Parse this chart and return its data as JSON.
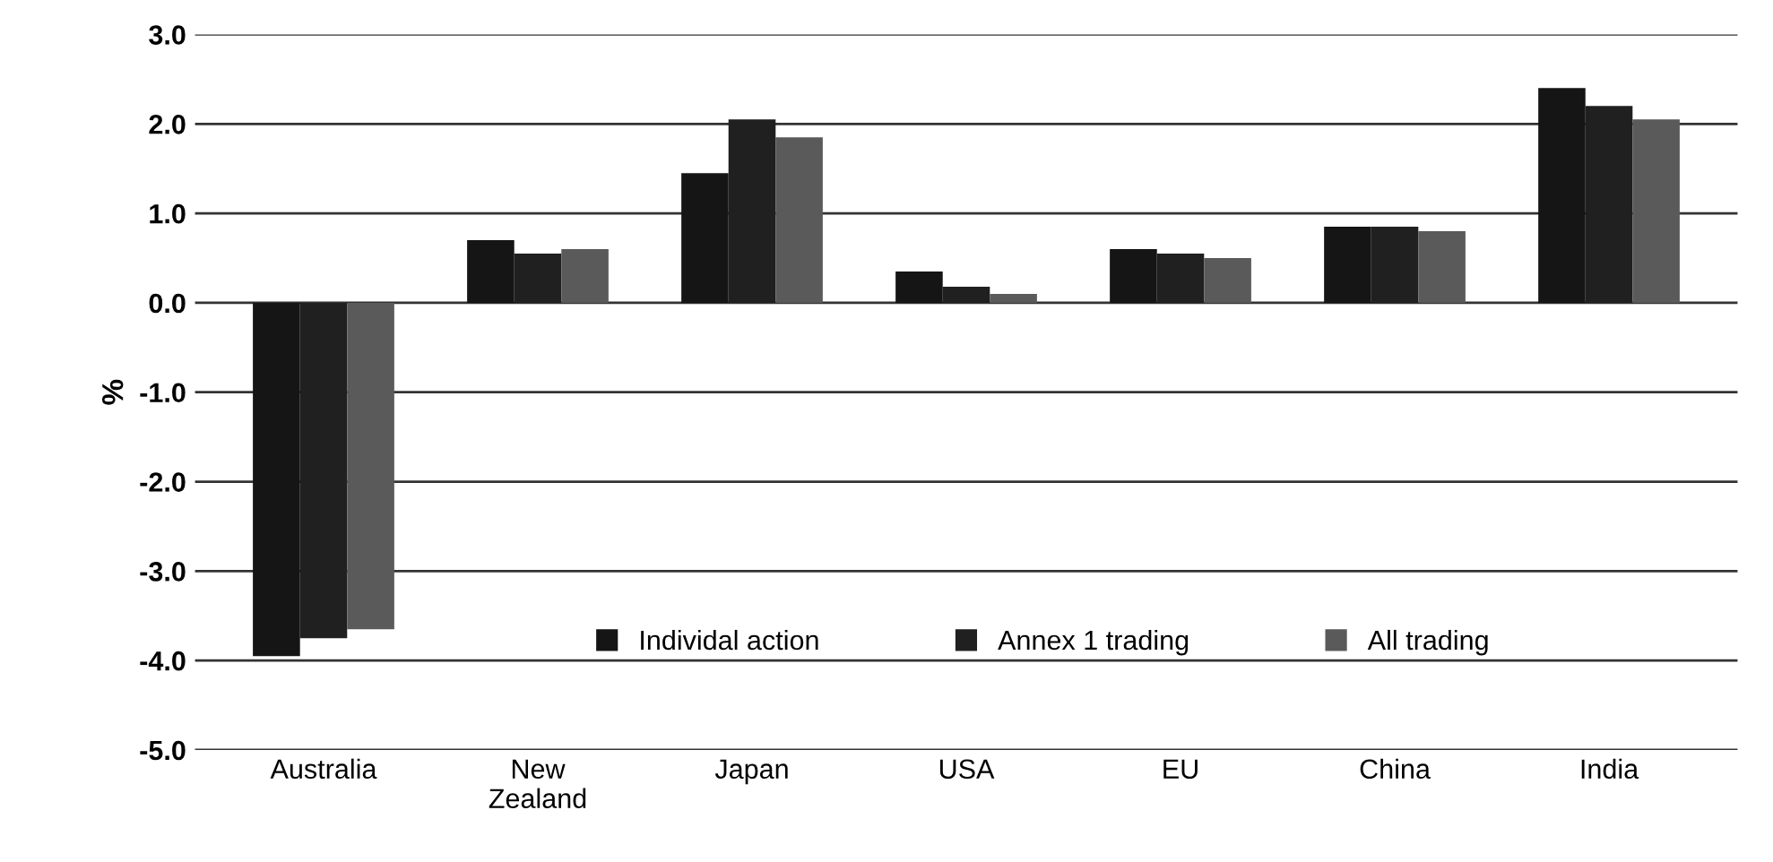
{
  "chart_data": {
    "type": "bar",
    "ylabel": "%",
    "categories": [
      "Australia",
      "New\nZealand",
      "Japan",
      "USA",
      "EU",
      "China",
      "India"
    ],
    "series": [
      {
        "name": "Individal action",
        "color": "#151515",
        "values": [
          -3.95,
          0.7,
          1.45,
          0.35,
          0.6,
          0.85,
          2.4
        ]
      },
      {
        "name": "Annex 1 trading",
        "color": "#202020",
        "values": [
          -3.75,
          0.55,
          2.05,
          0.18,
          0.55,
          0.85,
          2.2
        ]
      },
      {
        "name": "All trading",
        "color": "#5a5a5a",
        "values": [
          -3.65,
          0.6,
          1.85,
          0.1,
          0.5,
          0.8,
          2.05
        ]
      }
    ],
    "ylim": [
      -5.0,
      3.0
    ],
    "yticks": [
      {
        "value": -5,
        "label": "-5.0"
      },
      {
        "value": -4,
        "label": "-4.0"
      },
      {
        "value": -3,
        "label": "-3.0"
      },
      {
        "value": -2,
        "label": "-2.0"
      },
      {
        "value": -1,
        "label": "-1.0"
      },
      {
        "value": 0,
        "label": "0.0"
      },
      {
        "value": 1,
        "label": "1.0"
      },
      {
        "value": 2,
        "label": "2.0"
      },
      {
        "value": 3,
        "label": "3.0"
      }
    ],
    "grid": "y",
    "legend": "center"
  }
}
